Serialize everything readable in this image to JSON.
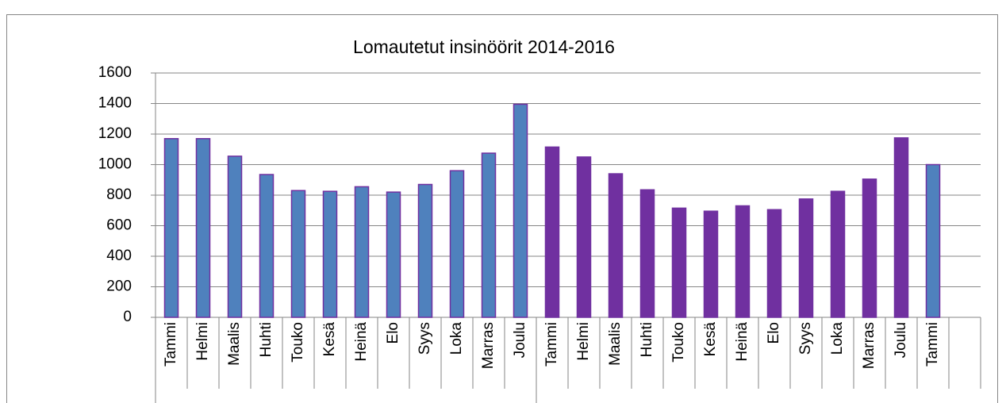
{
  "chart_data": {
    "type": "bar",
    "title": "Lomautetut insinöörit 2014-2016",
    "categories": [
      "Tammi",
      "Helmi",
      "Maalis",
      "Huhti",
      "Touko",
      "Kesä",
      "Heinä",
      "Elo",
      "Syys",
      "Loka",
      "Marras",
      "Joulu",
      "Tammi",
      "Helmi",
      "Maalis",
      "Huhti",
      "Touko",
      "Kesä",
      "Heinä",
      "Elo",
      "Syys",
      "Loka",
      "Marras",
      "Joulu",
      "Tammi",
      null
    ],
    "values": [
      1170,
      1170,
      1055,
      935,
      830,
      825,
      855,
      820,
      870,
      960,
      1075,
      1395,
      1115,
      1050,
      940,
      835,
      715,
      695,
      730,
      705,
      775,
      825,
      905,
      1175,
      1000,
      null
    ],
    "colors": [
      "#4f81bd",
      "#4f81bd",
      "#4f81bd",
      "#4f81bd",
      "#4f81bd",
      "#4f81bd",
      "#4f81bd",
      "#4f81bd",
      "#4f81bd",
      "#4f81bd",
      "#4f81bd",
      "#4f81bd",
      "#7030a0",
      "#7030a0",
      "#7030a0",
      "#7030a0",
      "#7030a0",
      "#7030a0",
      "#7030a0",
      "#7030a0",
      "#7030a0",
      "#7030a0",
      "#7030a0",
      "#7030a0",
      "#4f81bd",
      null
    ],
    "ylim": [
      0,
      1600
    ],
    "yticks": [
      0,
      200,
      400,
      600,
      800,
      1000,
      1200,
      1400,
      1600
    ],
    "grid": true
  }
}
